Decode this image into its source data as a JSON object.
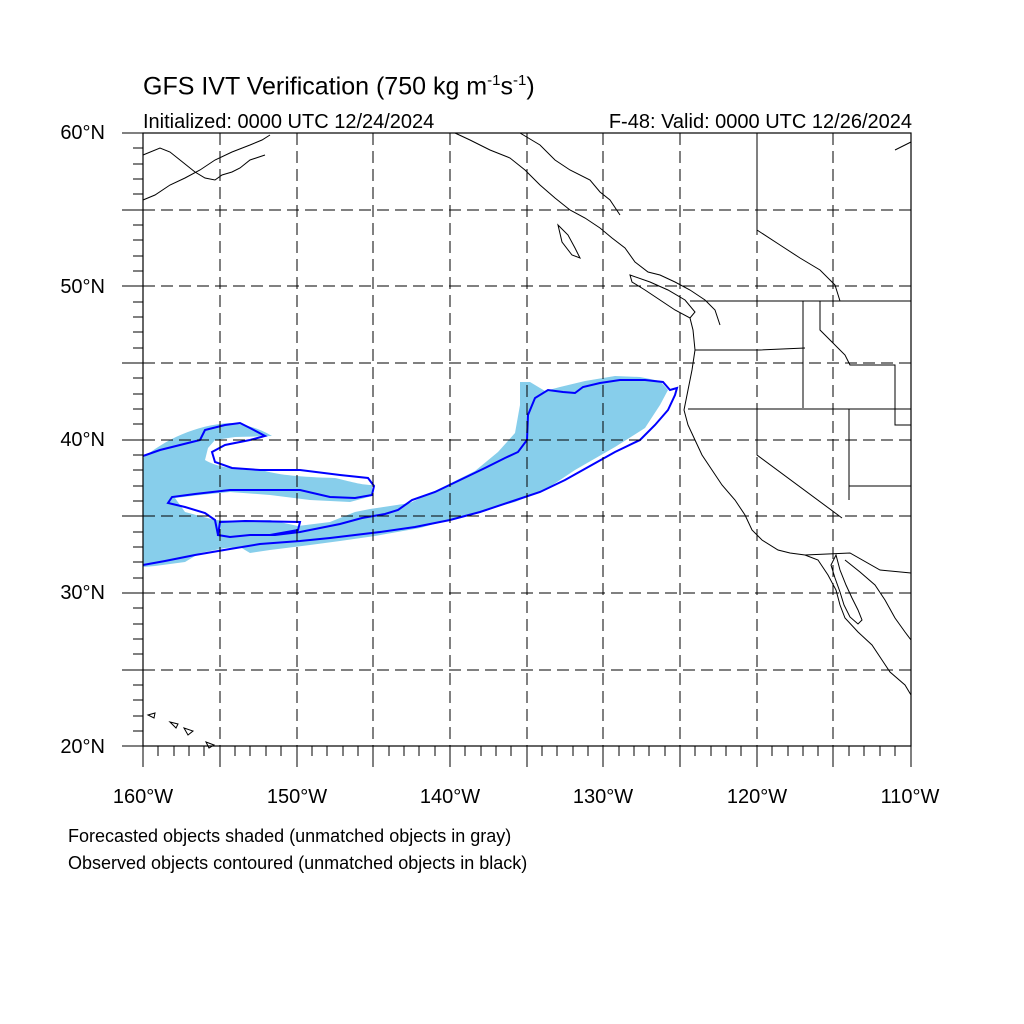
{
  "title": {
    "main": "GFS IVT Verification (750 kg m",
    "exp1": "-1",
    "mid": "s",
    "exp2": "-1",
    "end": ")"
  },
  "subtitle": {
    "initialized": "Initialized: 0000 UTC 12/24/2024",
    "valid": "F-48: Valid: 0000 UTC 12/26/2024"
  },
  "map": {
    "region": "North Pacific / US West Coast",
    "lon_range": [
      -160,
      -110
    ],
    "lat_range": [
      20,
      60
    ],
    "grid": "dashed every 5 degrees",
    "forecast_object_color": "#87CEEB",
    "observed_contour_color": "#0000FF",
    "coastline_color": "#000000"
  },
  "axes": {
    "y_ticks": [
      "60°N",
      "50°N",
      "40°N",
      "30°N",
      "20°N"
    ],
    "x_ticks": [
      "160°W",
      "150°W",
      "140°W",
      "130°W",
      "120°W",
      "110°W"
    ]
  },
  "legend": {
    "line1": "Forecasted objects shaded (unmatched objects in gray)",
    "line2": "Observed objects contoured (unmatched objects in black)"
  }
}
